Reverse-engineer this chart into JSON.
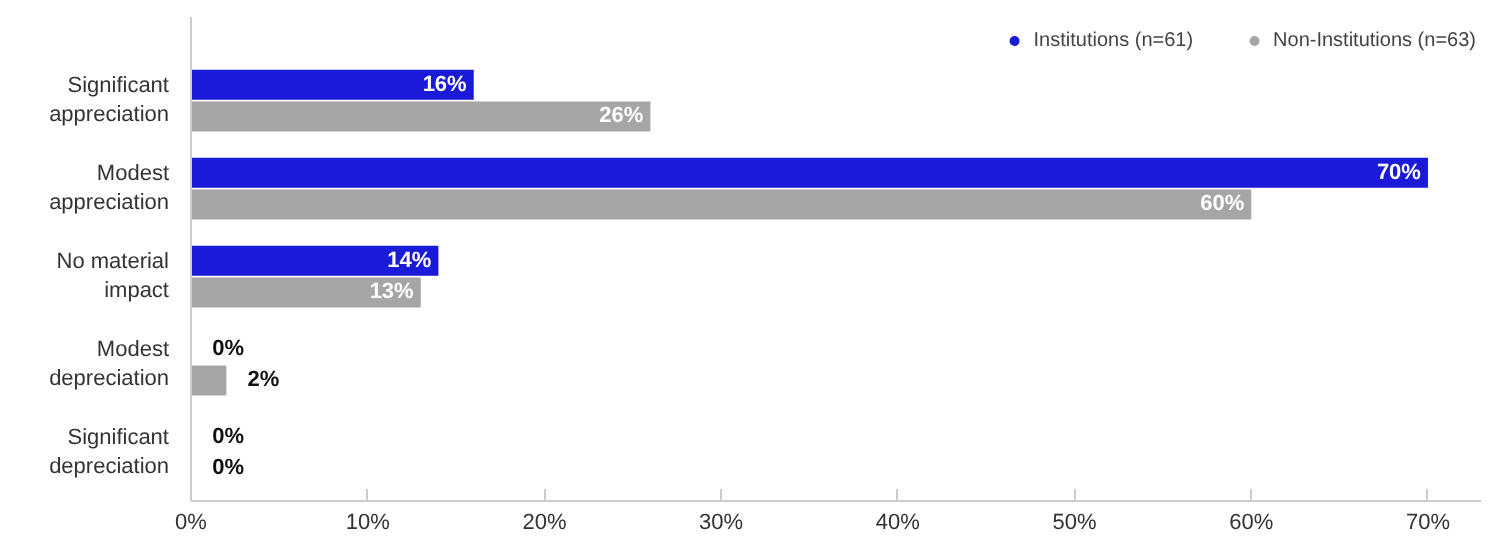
{
  "chart_data": {
    "type": "bar",
    "orientation": "horizontal",
    "categories": [
      "Significant appreciation",
      "Modest appreciation",
      "No material impact",
      "Modest depreciation",
      "Significant depreciation"
    ],
    "series": [
      {
        "name": "Institutions (n=61)",
        "color": "#1a1ad8",
        "values": [
          16,
          70,
          14,
          0,
          0
        ],
        "value_labels": [
          "16%",
          "70%",
          "14%",
          "0%",
          "0%"
        ]
      },
      {
        "name": "Non-Institutions (n=63)",
        "color": "#a6a6a6",
        "values": [
          26,
          60,
          13,
          2,
          0
        ],
        "value_labels": [
          "26%",
          "60%",
          "13%",
          "2%",
          "0%"
        ]
      }
    ],
    "xlim": [
      0,
      73
    ],
    "xticks": [
      {
        "value": 0,
        "label": "0%"
      },
      {
        "value": 10,
        "label": "10%"
      },
      {
        "value": 20,
        "label": "20%"
      },
      {
        "value": 30,
        "label": "30%"
      },
      {
        "value": 40,
        "label": "40%"
      },
      {
        "value": 50,
        "label": "50%"
      },
      {
        "value": 60,
        "label": "60%"
      },
      {
        "value": 70,
        "label": "70%"
      }
    ],
    "legend": "top right",
    "marker": "circle",
    "grid": false
  }
}
